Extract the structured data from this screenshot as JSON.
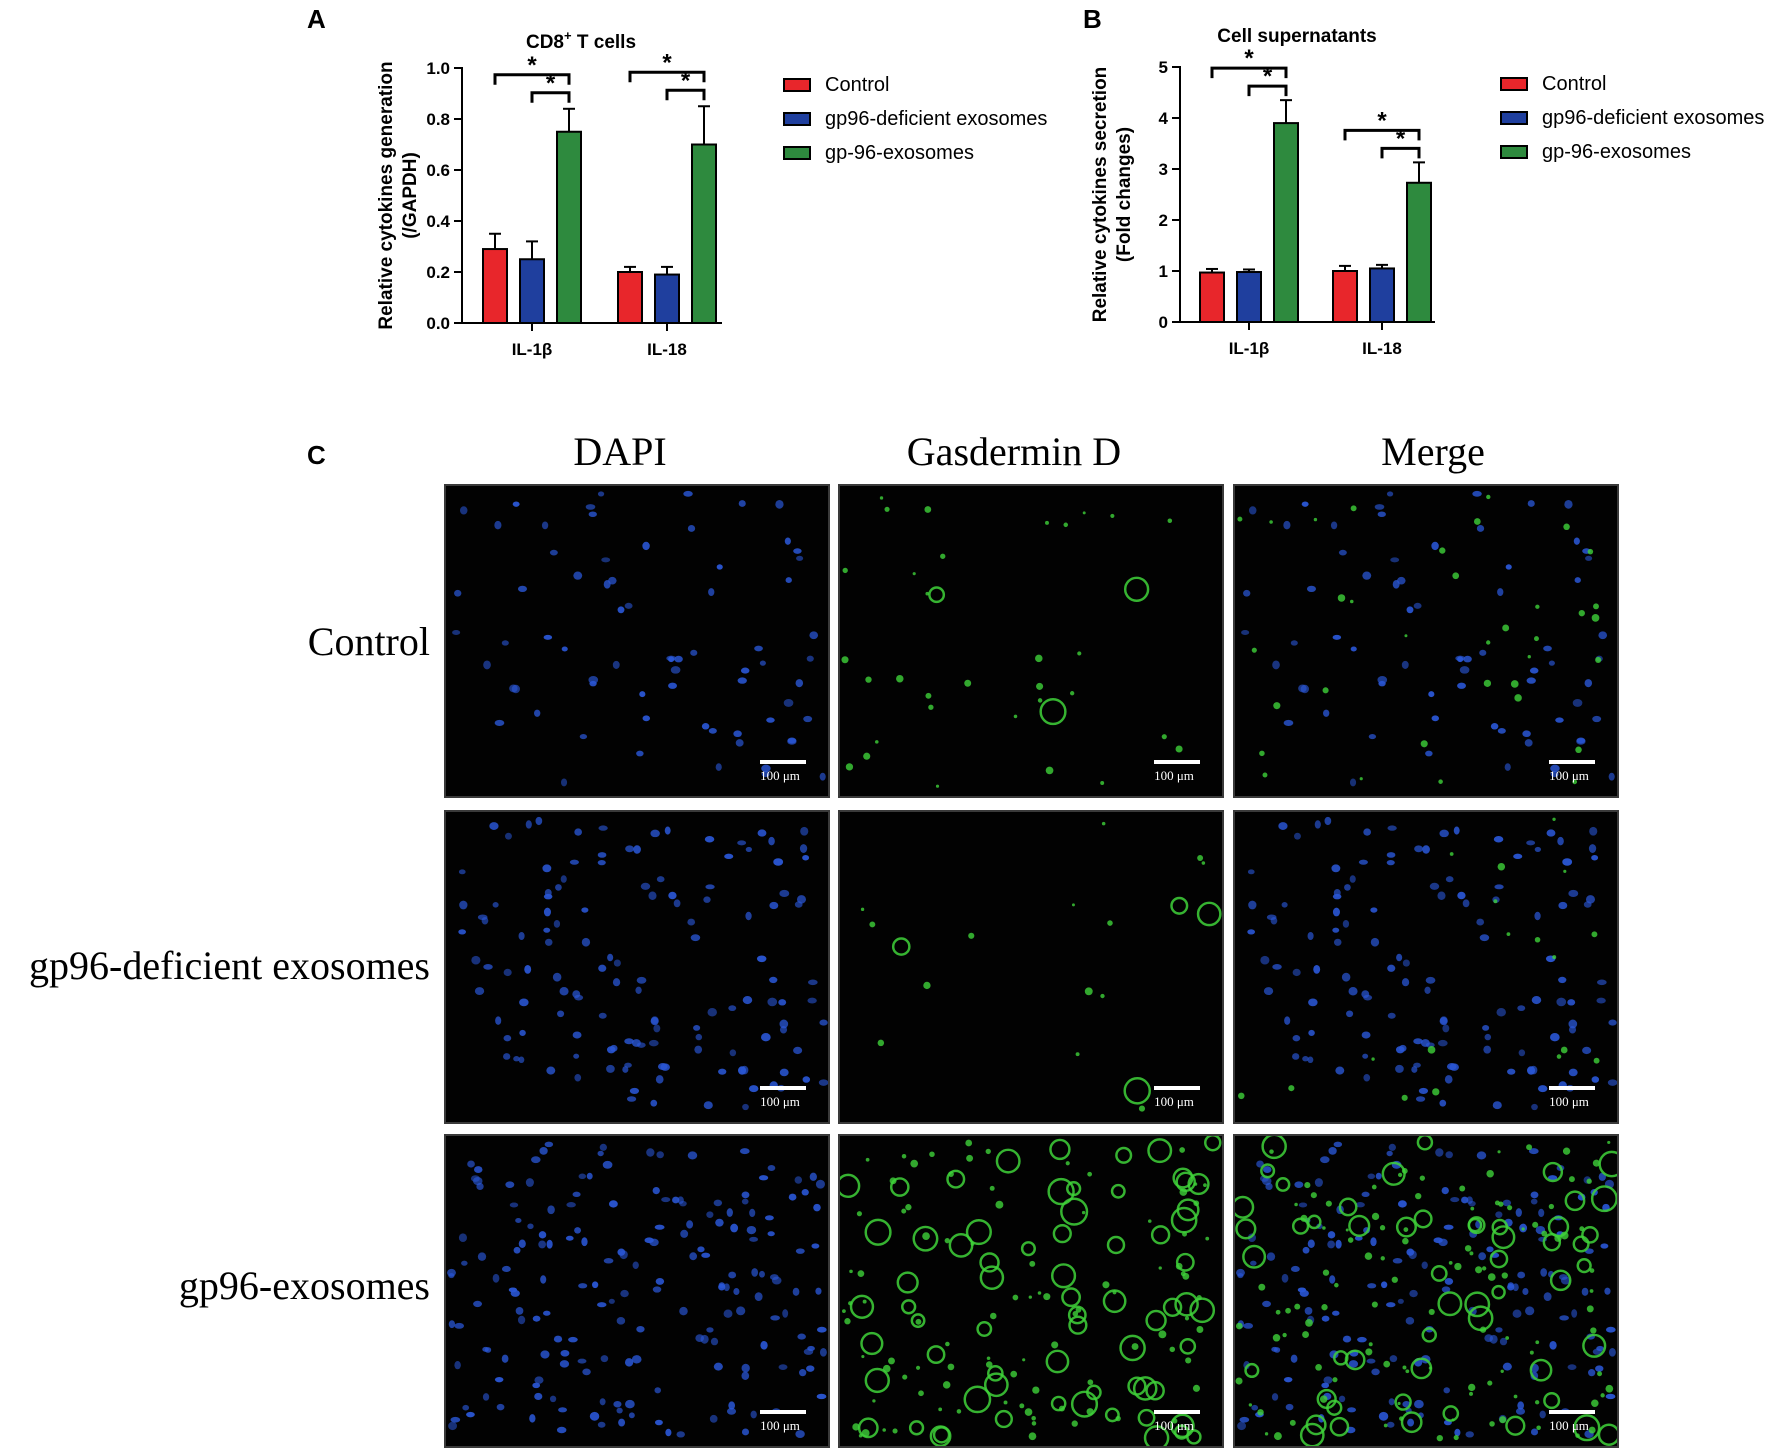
{
  "panels": {
    "a": "A",
    "b": "B",
    "c": "C"
  },
  "legend_items": [
    {
      "label": "Control",
      "color": "#e8262b"
    },
    {
      "label": "gp96-deficient exosomes",
      "color": "#1f3f9e"
    },
    {
      "label": "gp-96-exosomes",
      "color": "#2e8a3e"
    }
  ],
  "chart_data": [
    {
      "type": "bar",
      "title_main": "CD8",
      "title_sup": "+",
      "title_rest": " T cells",
      "ylabel_line1": "Relative cytokines generation",
      "ylabel_line2": "(/GAPDH)",
      "categories": [
        "IL-1β",
        "IL-18"
      ],
      "ylim": [
        0,
        1.0
      ],
      "yticks": [
        "0.0",
        "0.2",
        "0.4",
        "0.6",
        "0.8",
        "1.0"
      ],
      "ytick_values": [
        0,
        0.2,
        0.4,
        0.6,
        0.8,
        1.0
      ],
      "series": [
        {
          "name": "Control",
          "values": [
            0.29,
            0.2
          ],
          "errors": [
            0.06,
            0.02
          ]
        },
        {
          "name": "gp96-deficient exosomes",
          "values": [
            0.25,
            0.19
          ],
          "errors": [
            0.07,
            0.03
          ]
        },
        {
          "name": "gp-96-exosomes",
          "values": [
            0.75,
            0.7
          ],
          "errors": [
            0.09,
            0.15
          ]
        }
      ],
      "significance": "*"
    },
    {
      "type": "bar",
      "title_main": "Cell supernatants",
      "title_sup": "",
      "title_rest": "",
      "ylabel_line1": "Relative cytokines secretion",
      "ylabel_line2": "(Fold changes)",
      "categories": [
        "IL-1β",
        "IL-18"
      ],
      "ylim": [
        0,
        5
      ],
      "yticks": [
        "0",
        "1",
        "2",
        "3",
        "4",
        "5"
      ],
      "ytick_values": [
        0,
        1,
        2,
        3,
        4,
        5
      ],
      "series": [
        {
          "name": "Control",
          "values": [
            0.97,
            1.0
          ],
          "errors": [
            0.07,
            0.1
          ]
        },
        {
          "name": "gp96-deficient exosomes",
          "values": [
            0.98,
            1.05
          ],
          "errors": [
            0.05,
            0.07
          ]
        },
        {
          "name": "gp-96-exosomes",
          "values": [
            3.9,
            2.73
          ],
          "errors": [
            0.45,
            0.4
          ]
        }
      ],
      "significance": "*"
    }
  ],
  "micrograph_grid": {
    "columns": [
      "DAPI",
      "Gasdermin D",
      "Merge"
    ],
    "rows": [
      "Control",
      "gp96-deficient exosomes",
      "gp96-exosomes"
    ],
    "scale_bar": "100 μm",
    "nucleus_color": "#2a57d6",
    "gsdmd_color": "#3fd23a"
  }
}
